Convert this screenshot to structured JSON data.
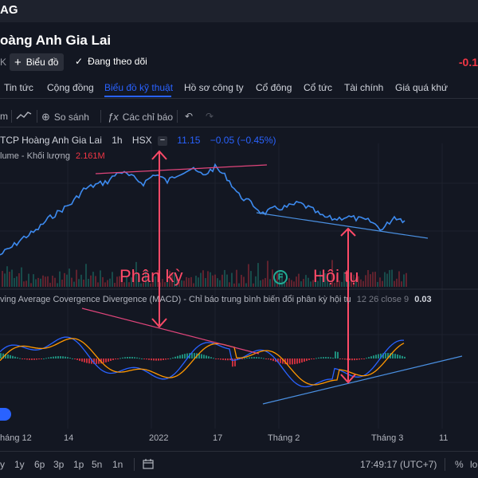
{
  "top": {
    "logo": "AG"
  },
  "company": {
    "title": "oàng Anh Gia Lai"
  },
  "actions": {
    "x_mark": "K",
    "chart_button": "Biểu đồ",
    "follow_label": "Đang theo dõi",
    "change": "-0.1"
  },
  "tabs": [
    {
      "label": "Tin tức"
    },
    {
      "label": "Cộng đồng"
    },
    {
      "label": "Biểu đồ kỹ thuật"
    },
    {
      "label": "Hồ sơ công ty"
    },
    {
      "label": "Cổ đông"
    },
    {
      "label": "Cổ tức"
    },
    {
      "label": "Tài chính"
    },
    {
      "label": "Giá quá khứ"
    }
  ],
  "toolbar": {
    "compare_label": "So sánh",
    "indicators_label": "Các chỉ báo"
  },
  "legend": {
    "symbol_name": "TCP Hoàng Anh Gia Lai",
    "interval": "1h",
    "exchange": "HSX",
    "price": "11.15",
    "change": "−0.05 (−0.45%)",
    "volume_label": "lume - Khối lượng",
    "volume_value": "2.161M",
    "macd_label": "ving Average Covergence Divergence (MACD) - Chỉ báo trung bình biến đổi phân kỳ hội tụ",
    "macd_params": "12 26 close 9",
    "macd_value": "0.03"
  },
  "annotations": {
    "divergence": "Phân kỳ",
    "convergence": "Hội tụ",
    "badge": "F"
  },
  "colors": {
    "background": "#131722",
    "price_line": "#2962ff",
    "annotation": "#ff4a68",
    "up": "#22ab94",
    "down": "#f23645",
    "macd_signal": "#ff9800"
  },
  "date_axis": [
    "háng 12",
    "14",
    "2022",
    "17",
    "Tháng 2",
    "Tháng 3",
    "11"
  ],
  "bottom": {
    "ranges": [
      "y",
      "1y",
      "6p",
      "3p",
      "1p",
      "5n",
      "1n"
    ],
    "clock": "17:49:17 (UTC+7)",
    "percent_label": "%",
    "log_label": "lo"
  }
}
